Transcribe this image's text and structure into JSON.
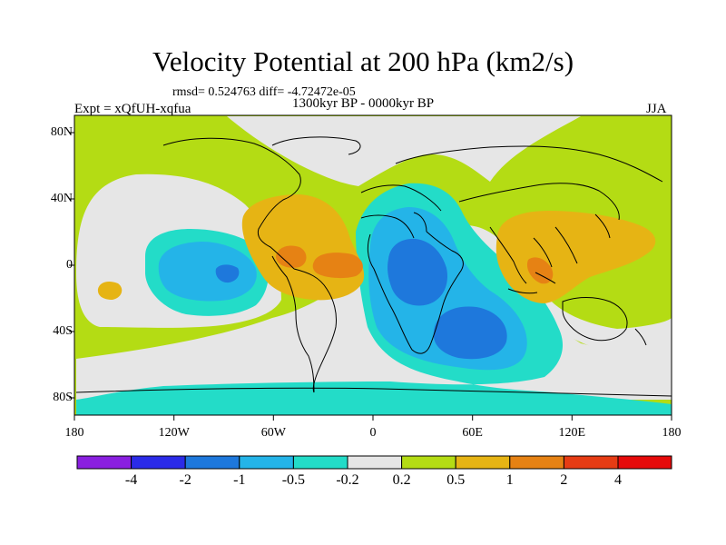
{
  "title": "Velocity Potential at 200 hPa (km2/s)",
  "stats": "rmsd= 0.524763 diff= -4.72472e-05",
  "period": "1300kyr BP - 0000kyr BP",
  "experiment": "Expt = xQfUH-xqfua",
  "season": "JJA",
  "map": {
    "projection": "cylindrical equidistant",
    "lon_range": [
      -180,
      180
    ],
    "lat_range": [
      -90,
      90
    ],
    "lon_ticks": [
      "180",
      "120W",
      "60W",
      "0",
      "60E",
      "120E",
      "180"
    ],
    "lat_ticks": [
      "80N",
      "40N",
      "0",
      "40S",
      "80S"
    ]
  },
  "colorbar": {
    "labels": [
      "-4",
      "-2",
      "-1",
      "-0.5",
      "-0.2",
      "0.2",
      "0.5",
      "1",
      "2",
      "4"
    ],
    "colors": [
      "#8a1fe0",
      "#2b2be8",
      "#1e78dc",
      "#24b4e8",
      "#23dcc8",
      "#e6e6e6",
      "#b4dc14",
      "#e6b414",
      "#e68214",
      "#e63c14",
      "#e60a0a"
    ]
  }
}
